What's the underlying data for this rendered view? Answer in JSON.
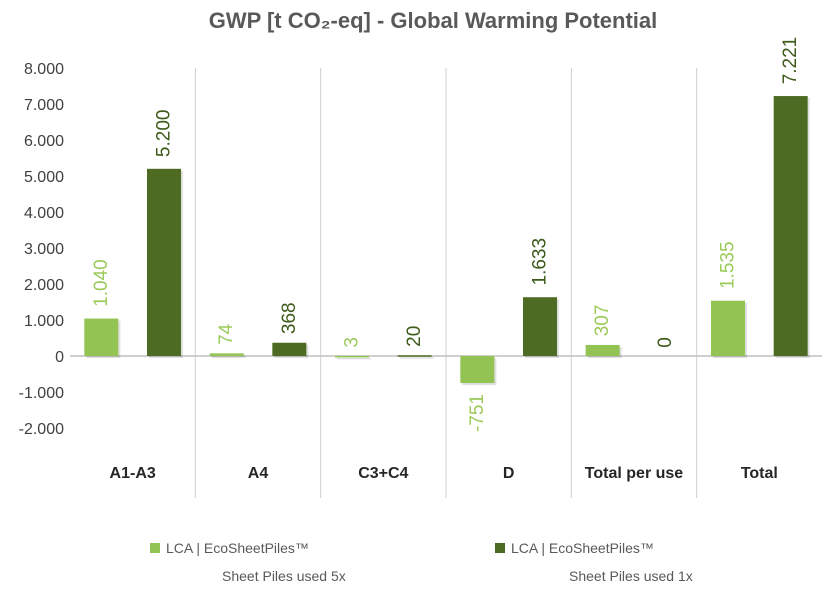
{
  "chart_data": {
    "type": "bar",
    "title": "GWP [t CO₂-eq] - Global Warming Potential",
    "categories": [
      "A1-A3",
      "A4",
      "C3+C4",
      "D",
      "Total per use",
      "Total"
    ],
    "series": [
      {
        "name": "LCA | EcoSheetPiles™ Sheet Piles used 5x",
        "legend_line1": "LCA | EcoSheetPiles™",
        "legend_line2": "Sheet Piles used 5x",
        "color": "#92c353",
        "label_color": "#9ccb5a",
        "values": [
          1040,
          74,
          3,
          -751,
          307,
          1535
        ],
        "labels": [
          "1.040",
          "74",
          "3",
          "-751",
          "307",
          "1.535"
        ]
      },
      {
        "name": "LCA | EcoSheetPiles™ Sheet Piles used 1x",
        "legend_line1": "LCA | EcoSheetPiles™",
        "legend_line2": "Sheet Piles used 1x",
        "color": "#4e6b24",
        "label_color": "#3d5a1a",
        "values": [
          5200,
          368,
          20,
          1633,
          0,
          7221
        ],
        "labels": [
          "5.200",
          "368",
          "20",
          "1.633",
          "0",
          "7.221"
        ]
      }
    ],
    "ylim": [
      -2000,
      8000
    ],
    "yticks": [
      8000,
      7000,
      6000,
      5000,
      4000,
      3000,
      2000,
      1000,
      0,
      -1000,
      -2000
    ],
    "ytick_labels": [
      "8.000",
      "7.000",
      "6.000",
      "5.000",
      "4.000",
      "3.000",
      "2.000",
      "1.000",
      "0",
      "-1.000",
      "-2.000"
    ],
    "xlabel": "",
    "ylabel": "",
    "grid": "vertical category separators",
    "legend_position": "bottom"
  }
}
